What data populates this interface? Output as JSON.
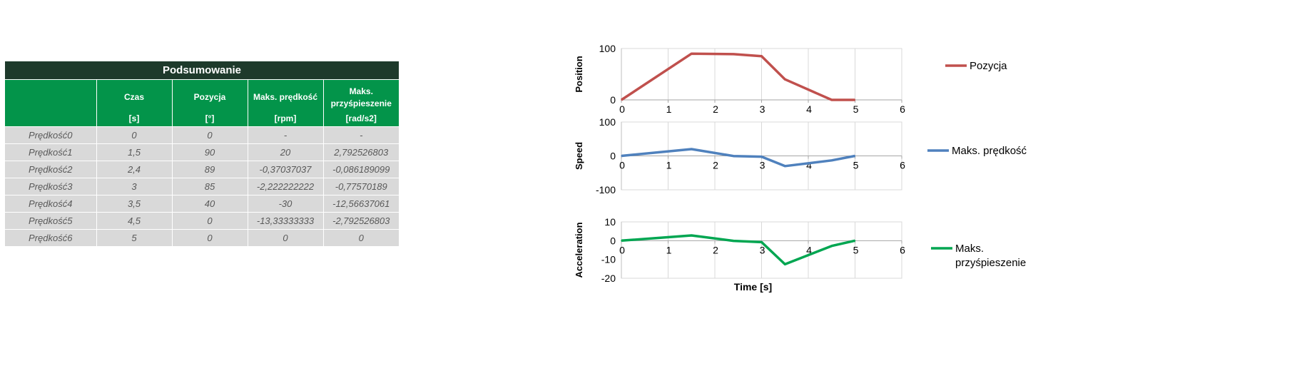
{
  "table": {
    "title": "Podsumowanie",
    "headers": [
      {
        "top": "",
        "unit": ""
      },
      {
        "top": "Czas",
        "unit": "[s]"
      },
      {
        "top": "Pozycja",
        "unit": "[°]"
      },
      {
        "top": "Maks. prędkość",
        "unit": "[rpm]"
      },
      {
        "top": "Maks. przyśpieszenie",
        "unit": "[rad/s2]"
      }
    ],
    "rows": [
      [
        "Prędkość0",
        "0",
        "0",
        "-",
        "-"
      ],
      [
        "Prędkość1",
        "1,5",
        "90",
        "20",
        "2,792526803"
      ],
      [
        "Prędkość2",
        "2,4",
        "89",
        "-0,37037037",
        "-0,086189099"
      ],
      [
        "Prędkość3",
        "3",
        "85",
        "-2,222222222",
        "-0,77570189"
      ],
      [
        "Prędkość4",
        "3,5",
        "40",
        "-30",
        "-12,56637061"
      ],
      [
        "Prędkość5",
        "4,5",
        "0",
        "-13,33333333",
        "-2,792526803"
      ],
      [
        "Prędkość6",
        "5",
        "0",
        "0",
        "0"
      ]
    ]
  },
  "chart_data": [
    {
      "type": "line",
      "ylabel": "Position",
      "xlabel": "",
      "xlim": [
        0,
        6
      ],
      "ylim": [
        0,
        100
      ],
      "xticks": [
        "0",
        "1",
        "2",
        "3",
        "4",
        "5",
        "6"
      ],
      "yticks": [
        "0",
        "100"
      ],
      "grid": "vertical",
      "legend": "right",
      "series": [
        {
          "name": "Pozycja",
          "color": "#c0504d",
          "x": [
            0,
            1.5,
            2.4,
            3,
            3.5,
            4.5,
            5
          ],
          "values": [
            0,
            90,
            89,
            85,
            40,
            0,
            0
          ]
        }
      ]
    },
    {
      "type": "line",
      "ylabel": "Speed",
      "xlabel": "",
      "xlim": [
        0,
        6
      ],
      "ylim": [
        -100,
        100
      ],
      "xticks": [
        "0",
        "1",
        "2",
        "3",
        "4",
        "5",
        "6"
      ],
      "yticks": [
        "-100",
        "0",
        "100"
      ],
      "grid": "vertical",
      "legend": "right",
      "series": [
        {
          "name": "Maks. prędkość",
          "color": "#4f81bd",
          "x": [
            0,
            1.5,
            2.4,
            3,
            3.5,
            4.5,
            5
          ],
          "values": [
            0,
            20,
            -0.37037037,
            -2.222222222,
            -30,
            -13.33333333,
            0
          ]
        }
      ]
    },
    {
      "type": "line",
      "ylabel": "Acceleration",
      "xlabel": "Time [s]",
      "xlim": [
        0,
        6
      ],
      "ylim": [
        -20,
        10
      ],
      "xticks": [
        "0",
        "1",
        "2",
        "3",
        "4",
        "5",
        "6"
      ],
      "yticks": [
        "-20",
        "-10",
        "0",
        "10"
      ],
      "grid": "vertical",
      "legend": "right",
      "series": [
        {
          "name": "Maks. przyśpieszenie",
          "color": "#00a651",
          "x": [
            0,
            1.5,
            2.4,
            3,
            3.5,
            4.5,
            5
          ],
          "values": [
            0,
            2.792526803,
            -0.086189099,
            -0.77570189,
            -12.56637061,
            -2.792526803,
            0
          ]
        }
      ]
    }
  ]
}
